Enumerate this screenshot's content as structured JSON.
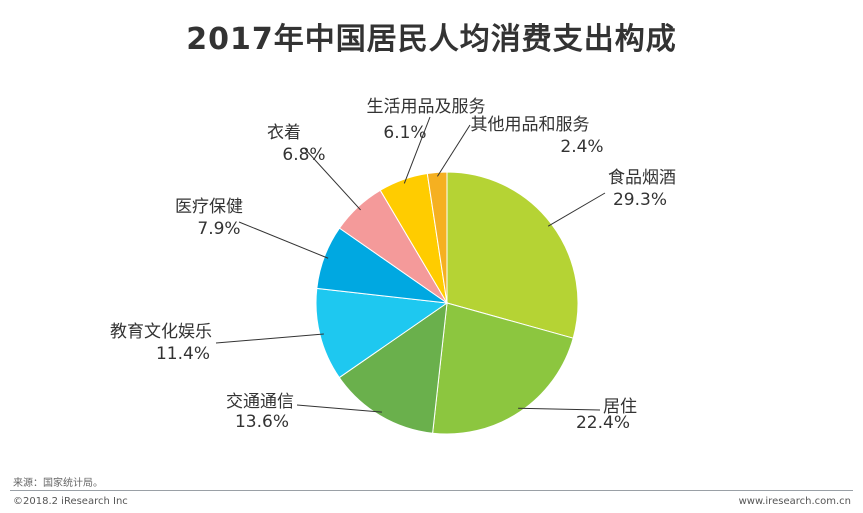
{
  "title": "2017年中国居民人均消费支出构成",
  "source": "来源：国家统计局。",
  "footer": {
    "copyright": "©2018.2 iResearch Inc",
    "website": "www.iresearch.com.cn"
  },
  "chart_data": {
    "type": "pie",
    "title": "2017年中国居民人均消费支出构成",
    "slices": [
      {
        "name": "食品烟酒",
        "value": 29.3,
        "label": "29.3%",
        "color": "#b5d334"
      },
      {
        "name": "居住",
        "value": 22.4,
        "label": "22.4%",
        "color": "#8cc63f"
      },
      {
        "name": "交通通信",
        "value": 13.6,
        "label": "13.6%",
        "color": "#6ab04c"
      },
      {
        "name": "教育文化娱乐",
        "value": 11.4,
        "label": "11.4%",
        "color": "#1ec8f0"
      },
      {
        "name": "医疗保健",
        "value": 7.9,
        "label": "7.9%",
        "color": "#00a8e1"
      },
      {
        "name": "衣着",
        "value": 6.8,
        "label": "6.8%",
        "color": "#f49a9a"
      },
      {
        "name": "生活用品及服务",
        "value": 6.1,
        "label": "6.1%",
        "color": "#ffcc00"
      },
      {
        "name": "其他用品和服务",
        "value": 2.4,
        "label": "2.4%",
        "color": "#f5b021"
      }
    ],
    "start": "12 o'clock",
    "direction": "clockwise",
    "legend": "none"
  }
}
